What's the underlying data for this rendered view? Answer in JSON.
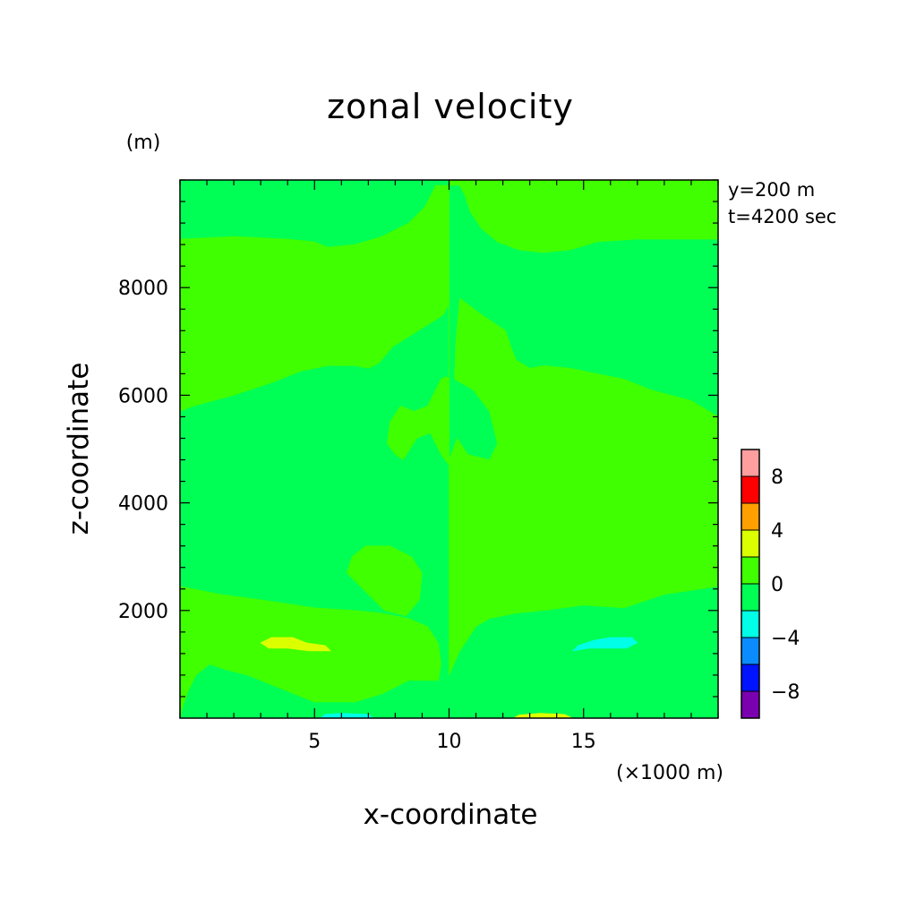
{
  "chart_data": {
    "type": "heatmap",
    "title": "zonal velocity",
    "xlabel": "x-coordinate",
    "ylabel": "z-coordinate",
    "x_unit": "(×1000 m)",
    "y_unit": "(m)",
    "xlim": [
      0,
      20
    ],
    "ylim": [
      0,
      10000
    ],
    "x_ticks": [
      5,
      10,
      15
    ],
    "y_ticks": [
      2000,
      4000,
      6000,
      8000
    ],
    "x_tick_labels": [
      "5",
      "10",
      "15"
    ],
    "y_tick_labels": [
      "2000",
      "4000",
      "6000",
      "8000"
    ],
    "annotations": [
      "y=200 m",
      "t=4200 sec"
    ],
    "colorbar": {
      "levels": [
        -10,
        -8,
        -6,
        -4,
        -2,
        0,
        2,
        4,
        6,
        8,
        10
      ],
      "colors": [
        "#7a00b0",
        "#0014ff",
        "#0a8cff",
        "#00ffe6",
        "#00ff55",
        "#40ff00",
        "#dcff00",
        "#ffa000",
        "#ff0000",
        "#ff9e9e"
      ],
      "tick_values": [
        -8,
        -4,
        0,
        4,
        8
      ],
      "tick_labels": [
        "−8",
        "−4",
        "0",
        "4",
        "8"
      ]
    },
    "regions": [
      {
        "name": "background",
        "value_range": [
          -2,
          0
        ],
        "color": "#00ff55",
        "points": [
          [
            0,
            0
          ],
          [
            20,
            0
          ],
          [
            20,
            10000
          ],
          [
            0,
            10000
          ]
        ]
      },
      {
        "name": "right-upper-plume",
        "value_range": [
          0,
          2
        ],
        "color": "#40ff00",
        "points": [
          [
            10,
            9900
          ],
          [
            10,
            800
          ],
          [
            10.4,
            1250
          ],
          [
            11,
            1700
          ],
          [
            11.5,
            1850
          ],
          [
            12.5,
            1950
          ],
          [
            13.5,
            2000
          ],
          [
            15,
            2100
          ],
          [
            16.5,
            2050
          ],
          [
            18,
            2300
          ],
          [
            20,
            2450
          ],
          [
            20,
            5600
          ],
          [
            19,
            5900
          ],
          [
            17.5,
            6100
          ],
          [
            16.5,
            6300
          ],
          [
            15.5,
            6400
          ],
          [
            14.5,
            6500
          ],
          [
            13.5,
            6550
          ],
          [
            13,
            6500
          ],
          [
            12.5,
            6650
          ],
          [
            12.3,
            6900
          ],
          [
            12.1,
            7200
          ],
          [
            11.2,
            7500
          ],
          [
            10.4,
            7800
          ],
          [
            10.25,
            7000
          ],
          [
            10.2,
            6300
          ],
          [
            10.9,
            6100
          ],
          [
            11.5,
            5700
          ],
          [
            11.8,
            5100
          ],
          [
            11.5,
            4800
          ],
          [
            10.7,
            4900
          ],
          [
            10.3,
            5200
          ],
          [
            10,
            4800
          ],
          [
            10,
            3500
          ],
          [
            10,
            3300
          ],
          [
            10,
            2900
          ],
          [
            10,
            2000
          ],
          [
            10,
            9900
          ]
        ]
      },
      {
        "name": "left-upper-plume",
        "value_range": [
          0,
          2
        ],
        "color": "#40ff00",
        "points": [
          [
            0,
            0
          ],
          [
            0,
            2450
          ],
          [
            1.5,
            2300
          ],
          [
            3,
            2200
          ],
          [
            5,
            2050
          ],
          [
            6.5,
            2000
          ],
          [
            7.5,
            1950
          ],
          [
            8.5,
            1850
          ],
          [
            9.2,
            1700
          ],
          [
            9.6,
            1400
          ],
          [
            9.7,
            1000
          ],
          [
            9.6,
            700
          ],
          [
            9.4,
            700
          ],
          [
            8.5,
            700
          ],
          [
            7.5,
            450
          ],
          [
            6.5,
            300
          ],
          [
            5,
            300
          ],
          [
            4,
            500
          ],
          [
            3,
            700
          ],
          [
            2.5,
            800
          ],
          [
            1.7,
            900
          ],
          [
            1.1,
            1000
          ],
          [
            0.6,
            800
          ],
          [
            0.3,
            500
          ],
          [
            0.1,
            200
          ],
          [
            0,
            0
          ]
        ]
      },
      {
        "name": "left-top-band",
        "value_range": [
          0,
          2
        ],
        "color": "#40ff00",
        "points": [
          [
            0,
            8900
          ],
          [
            2,
            8950
          ],
          [
            4,
            8900
          ],
          [
            5,
            8850
          ],
          [
            5.5,
            8750
          ],
          [
            6.5,
            8800
          ],
          [
            7.5,
            8950
          ],
          [
            8.5,
            9200
          ],
          [
            9.1,
            9500
          ],
          [
            9.5,
            9900
          ],
          [
            9.8,
            9900
          ],
          [
            10,
            9900
          ],
          [
            10,
            6300
          ],
          [
            9.9,
            6350
          ],
          [
            9.7,
            6300
          ],
          [
            9.2,
            5800
          ],
          [
            8.7,
            5700
          ],
          [
            8.2,
            5800
          ],
          [
            7.8,
            5500
          ],
          [
            7.7,
            5100
          ],
          [
            8,
            4900
          ],
          [
            8.3,
            4800
          ],
          [
            8.8,
            5200
          ],
          [
            9.3,
            5300
          ],
          [
            9.7,
            4900
          ],
          [
            10,
            4700
          ],
          [
            10,
            7700
          ],
          [
            9.8,
            7500
          ],
          [
            9.5,
            7400
          ],
          [
            8.7,
            7150
          ],
          [
            7.9,
            6900
          ],
          [
            7.4,
            6600
          ],
          [
            7,
            6500
          ],
          [
            6.5,
            6550
          ],
          [
            5.5,
            6550
          ],
          [
            4.5,
            6450
          ],
          [
            3.5,
            6250
          ],
          [
            2,
            6000
          ],
          [
            0.5,
            5800
          ],
          [
            0,
            5700
          ]
        ]
      },
      {
        "name": "right-top-band",
        "value_range": [
          0,
          2
        ],
        "color": "#40ff00",
        "points": [
          [
            10,
            9900
          ],
          [
            10.4,
            9900
          ],
          [
            10.6,
            9700
          ],
          [
            10.8,
            9400
          ],
          [
            11.2,
            9100
          ],
          [
            11.8,
            8850
          ],
          [
            12.6,
            8700
          ],
          [
            13.5,
            8650
          ],
          [
            14.5,
            8700
          ],
          [
            15.5,
            8850
          ],
          [
            17,
            8900
          ],
          [
            20,
            8900
          ],
          [
            20,
            10000
          ],
          [
            10,
            10000
          ]
        ]
      },
      {
        "name": "left-midlevel-blob",
        "value_range": [
          0,
          2
        ],
        "color": "#40ff00",
        "points": [
          [
            6.2,
            2700
          ],
          [
            6.8,
            2400
          ],
          [
            7.6,
            2000
          ],
          [
            8.4,
            1900
          ],
          [
            8.9,
            2200
          ],
          [
            9,
            2700
          ],
          [
            8.6,
            3000
          ],
          [
            7.8,
            3200
          ],
          [
            6.9,
            3200
          ],
          [
            6.4,
            3000
          ]
        ]
      },
      {
        "name": "right-midlevel-blob",
        "value_range": [
          0,
          2
        ],
        "color": "#40ff00",
        "points": [
          [
            11.3,
            2100
          ],
          [
            12,
            2300
          ],
          [
            13,
            2600
          ],
          [
            13.5,
            3000
          ],
          [
            13.3,
            3200
          ],
          [
            12.5,
            3200
          ],
          [
            11.7,
            3000
          ],
          [
            11.3,
            2600
          ]
        ]
      },
      {
        "name": "lower-left-yellow-blob",
        "value_range": [
          2,
          4
        ],
        "color": "#dcff00",
        "points": [
          [
            3,
            1400
          ],
          [
            3.4,
            1500
          ],
          [
            4.2,
            1500
          ],
          [
            4.7,
            1400
          ],
          [
            5.4,
            1350
          ],
          [
            5.6,
            1250
          ],
          [
            4.8,
            1250
          ],
          [
            4,
            1300
          ],
          [
            3.3,
            1300
          ]
        ]
      },
      {
        "name": "lower-right-cyan-blob",
        "value_range": [
          -4,
          -2
        ],
        "color": "#00ffe6",
        "points": [
          [
            14.6,
            1250
          ],
          [
            15.2,
            1300
          ],
          [
            15.9,
            1300
          ],
          [
            16.6,
            1300
          ],
          [
            17,
            1400
          ],
          [
            16.8,
            1500
          ],
          [
            16,
            1500
          ],
          [
            15.4,
            1450
          ],
          [
            14.8,
            1350
          ]
        ]
      },
      {
        "name": "bottom-left-cyan-strip",
        "value_range": [
          -4,
          -2
        ],
        "color": "#00ffe6",
        "points": [
          [
            5.2,
            0
          ],
          [
            7.2,
            0
          ],
          [
            7,
            70
          ],
          [
            6,
            90
          ],
          [
            5.4,
            70
          ]
        ]
      },
      {
        "name": "bottom-right-yellow-strip",
        "value_range": [
          2,
          4
        ],
        "color": "#dcff00",
        "points": [
          [
            12.4,
            0
          ],
          [
            14.6,
            0
          ],
          [
            14.3,
            70
          ],
          [
            13.4,
            90
          ],
          [
            12.6,
            60
          ]
        ]
      }
    ]
  }
}
